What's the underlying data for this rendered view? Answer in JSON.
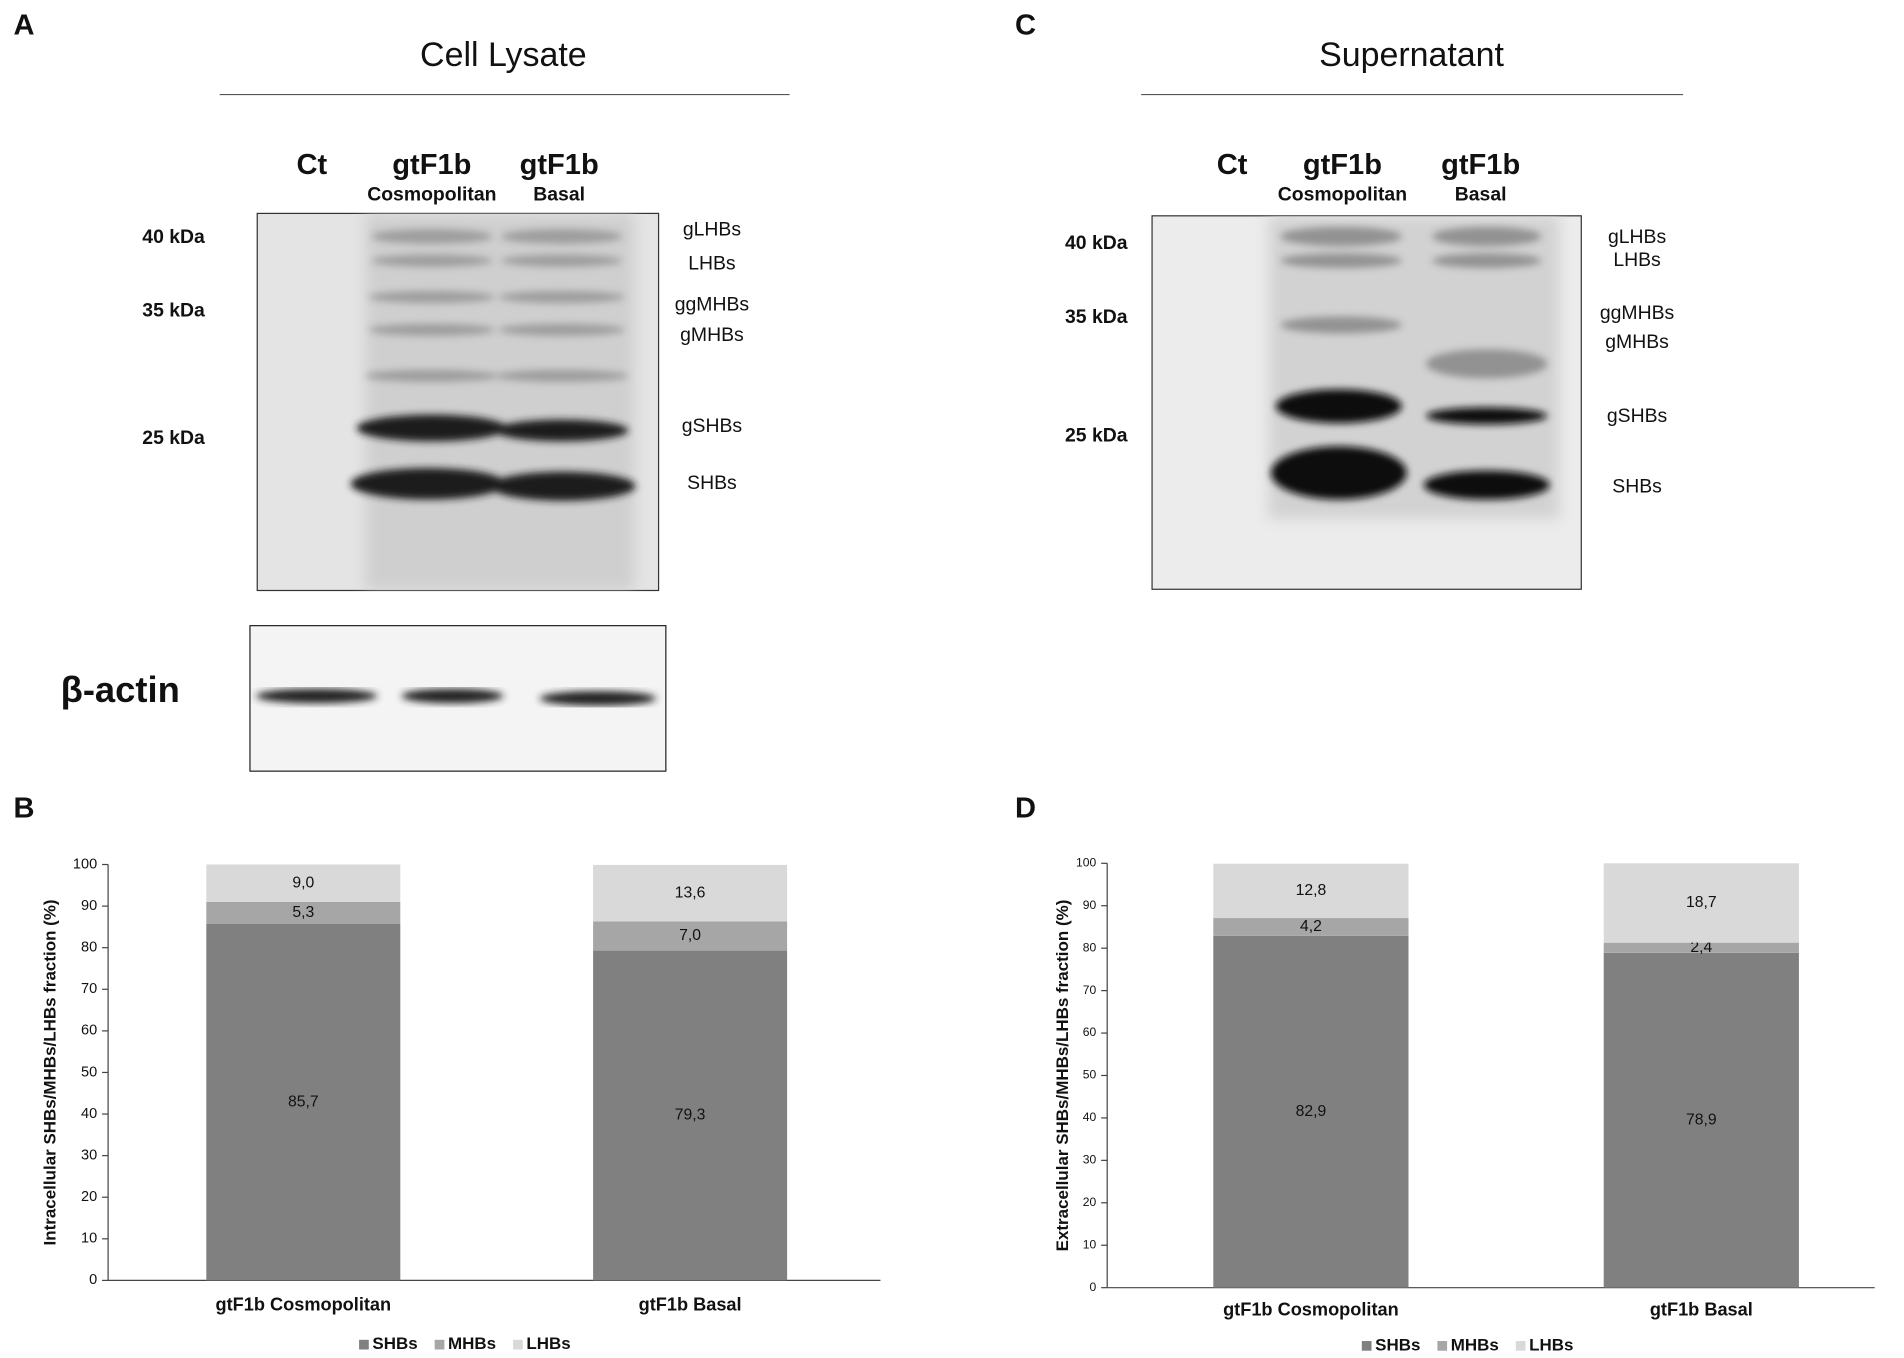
{
  "blots": [
    {
      "panel_label": "A",
      "title": "Cell Lysate",
      "lanes": [
        {
          "name": "Ct"
        },
        {
          "name": "gtF1b",
          "subname": "Cosmopolitan"
        },
        {
          "name": "gtF1b",
          "subname": "Basal"
        }
      ],
      "markers": [
        "40 kDa",
        "35 kDa",
        "25 kDa"
      ],
      "bands": [
        "gLHBs",
        "LHBs",
        "ggMHBs",
        "gMHBs",
        "gSHBs",
        "SHBs"
      ],
      "loading_control": "β-actin"
    },
    {
      "panel_label": "C",
      "title": "Supernatant",
      "lanes": [
        {
          "name": "Ct"
        },
        {
          "name": "gtF1b",
          "subname": "Cosmopolitan"
        },
        {
          "name": "gtF1b",
          "subname": "Basal"
        }
      ],
      "markers": [
        "40 kDa",
        "35 kDa",
        "25 kDa"
      ],
      "bands": [
        "gLHBs",
        "LHBs",
        "ggMHBs",
        "gMHBs",
        "gSHBs",
        "SHBs"
      ]
    }
  ],
  "chart_data": [
    {
      "type": "stacked_bar",
      "panel_label": "B",
      "y_label": "Intracellular SHBs/MHBs/LHBs fraction (%)",
      "categories": [
        "gtF1b Cosmopolitan",
        "gtF1b Basal"
      ],
      "series": [
        {
          "name": "SHBs",
          "color": "#808080",
          "values": [
            85.7,
            79.3
          ],
          "value_labels": [
            "85,7",
            "79,3"
          ]
        },
        {
          "name": "MHBs",
          "color": "#a6a6a6",
          "values": [
            5.3,
            7.0
          ],
          "value_labels": [
            "5,3",
            "7,0"
          ]
        },
        {
          "name": "LHBs",
          "color": "#d9d9d9",
          "values": [
            9.0,
            13.6
          ],
          "value_labels": [
            "9,0",
            "13,6"
          ]
        }
      ],
      "ylim": [
        0,
        100
      ],
      "yticks": [
        0,
        10,
        20,
        30,
        40,
        50,
        60,
        70,
        80,
        90,
        100
      ],
      "legend": "bottom"
    },
    {
      "type": "stacked_bar",
      "panel_label": "D",
      "y_label": "Extracellular SHBs/MHBs/LHBs fraction (%)",
      "categories": [
        "gtF1b Cosmopolitan",
        "gtF1b Basal"
      ],
      "series": [
        {
          "name": "SHBs",
          "color": "#808080",
          "values": [
            82.9,
            78.9
          ],
          "value_labels": [
            "82,9",
            "78,9"
          ]
        },
        {
          "name": "MHBs",
          "color": "#a6a6a6",
          "values": [
            4.2,
            2.4
          ],
          "value_labels": [
            "4,2",
            "2,4"
          ]
        },
        {
          "name": "LHBs",
          "color": "#d9d9d9",
          "values": [
            12.8,
            18.7
          ],
          "value_labels": [
            "12,8",
            "18,7"
          ]
        }
      ],
      "ylim": [
        0,
        100
      ],
      "yticks": [
        0,
        10,
        20,
        30,
        40,
        50,
        60,
        70,
        80,
        90,
        100
      ],
      "legend": "bottom"
    }
  ]
}
